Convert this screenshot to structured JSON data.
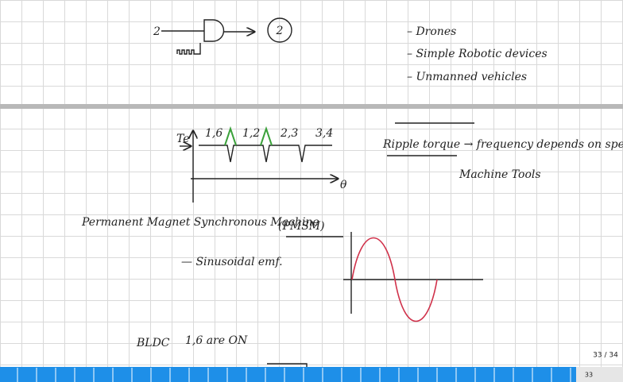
{
  "page": {
    "top": {
      "gate_input": "2",
      "circled_label": "2",
      "bullets": [
        "– Drones",
        "– Simple Robotic devices",
        "– Unmanned vehicles"
      ]
    },
    "torque_plot": {
      "y_label": "Te",
      "x_label": "θ",
      "segment_labels": [
        "1,6",
        "1,2",
        "2,3",
        "3,4"
      ]
    },
    "notes": {
      "ripple": "Ripple torque → frequency depends on speed.",
      "tools": "Machine Tools",
      "machine": "Permanent Magnet Synchronous Machine",
      "abbrev": "(PMSM)",
      "emf": "— Sinusoidal emf.",
      "bldc": "BLDC",
      "bldc_state": "1,6 are ON"
    },
    "footer": {
      "page_counter": "33 / 34",
      "page_number": "33"
    }
  }
}
